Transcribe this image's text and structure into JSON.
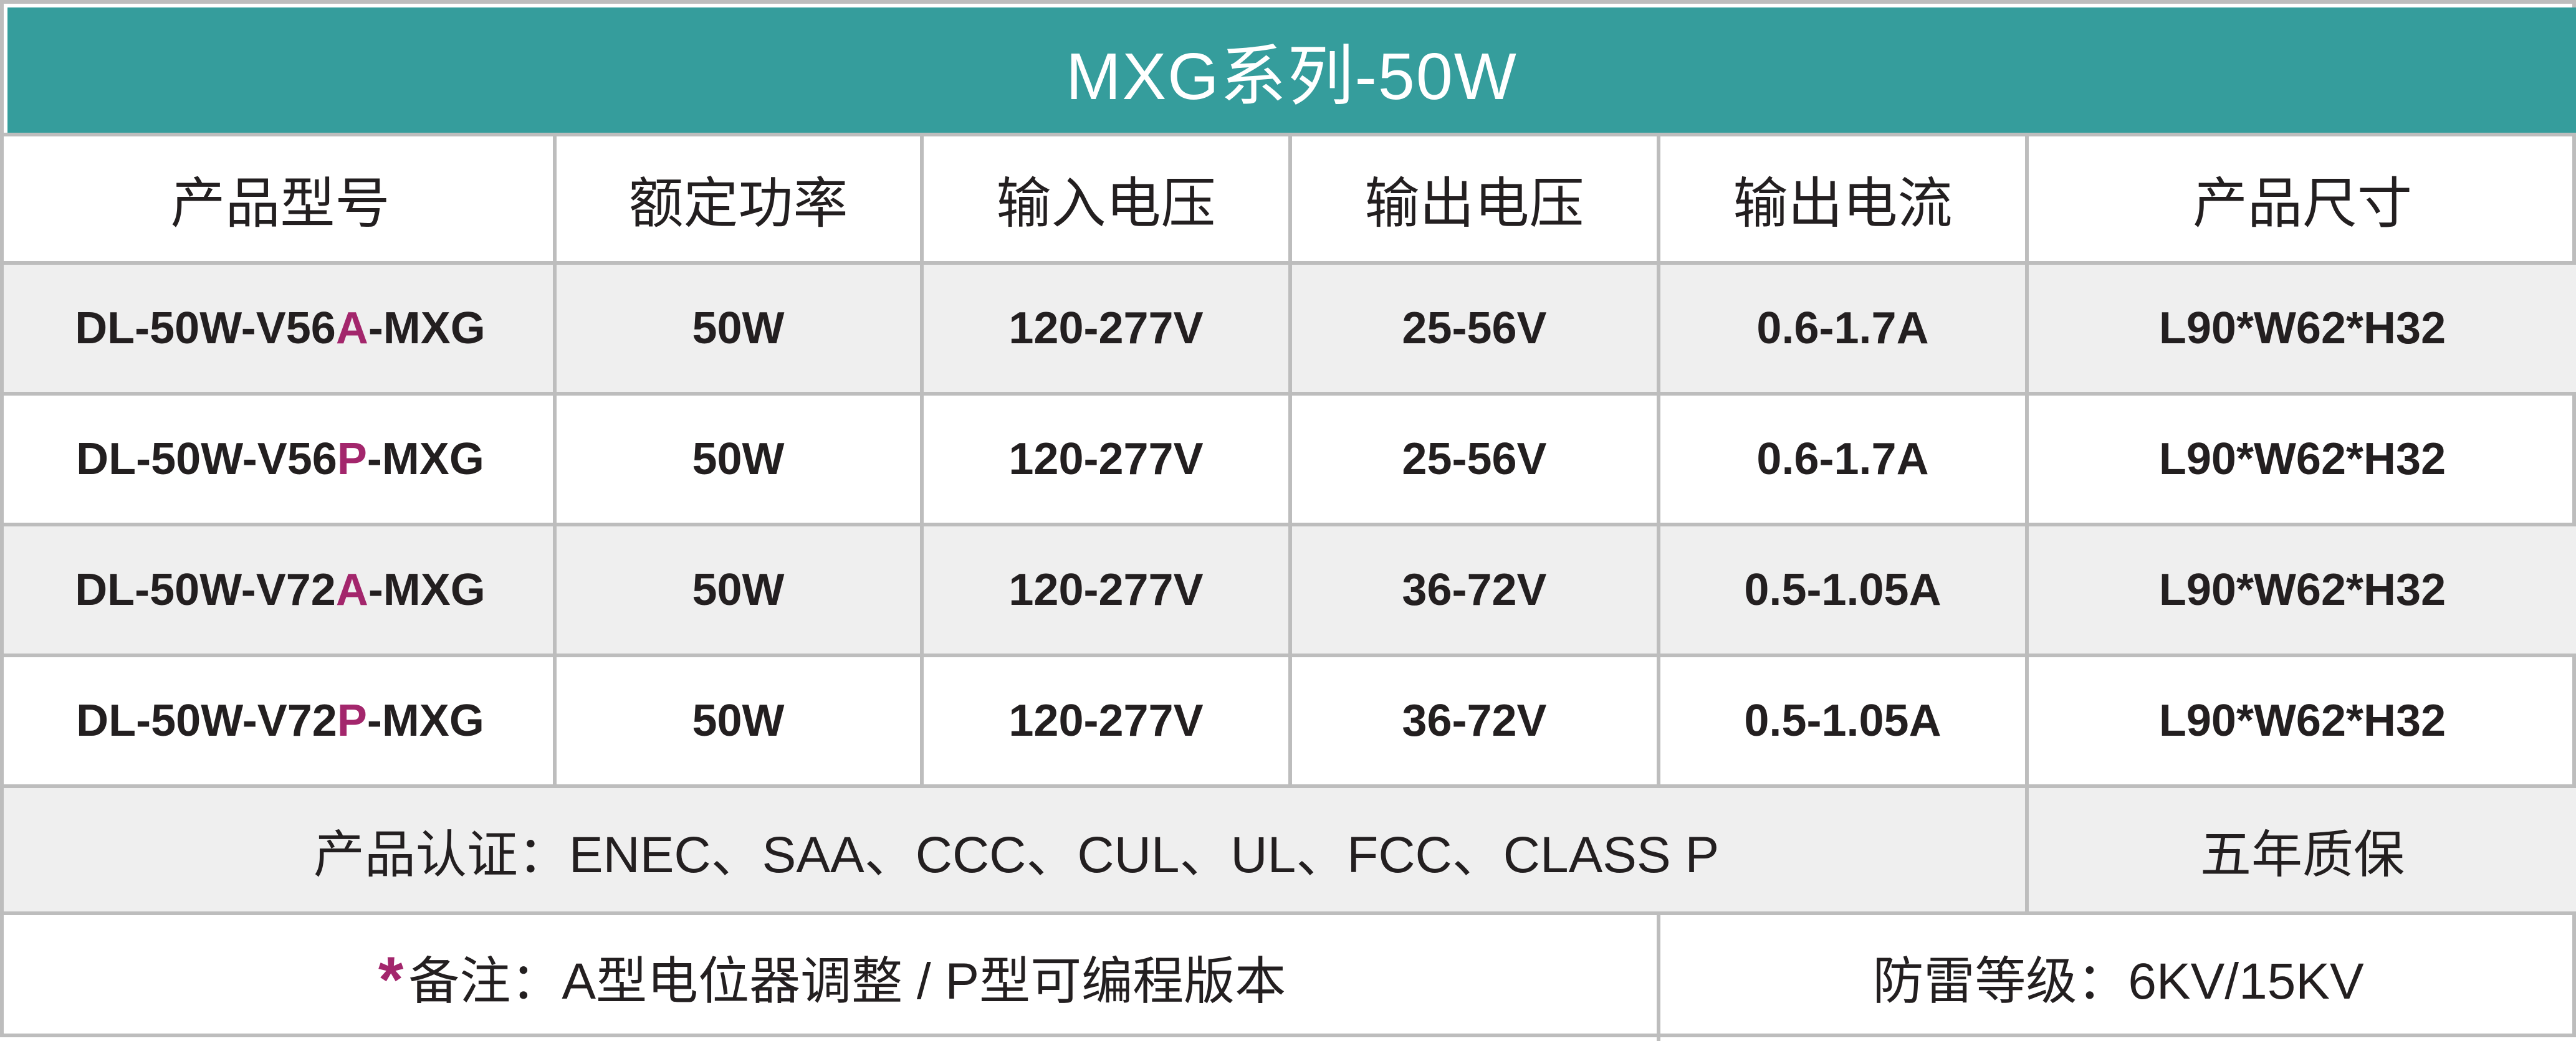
{
  "colors": {
    "header_bg": "#359d9c",
    "accent_variant": "#a3266c",
    "row_alt": "#efefef",
    "grid": "#bdbdbd"
  },
  "title": "MXG系列-50W",
  "columns": [
    "产品型号",
    "额定功率",
    "输入电压",
    "输出电压",
    "输出电流",
    "产品尺寸"
  ],
  "rows": [
    {
      "model_prefix": "DL-50W-V56",
      "model_variant": "A",
      "model_suffix": "-MXG",
      "power": "50W",
      "input_voltage": "120-277V",
      "output_voltage": "25-56V",
      "output_current": "0.6-1.7A",
      "size": "L90*W62*H32"
    },
    {
      "model_prefix": "DL-50W-V56",
      "model_variant": "P",
      "model_suffix": "-MXG",
      "power": "50W",
      "input_voltage": "120-277V",
      "output_voltage": "25-56V",
      "output_current": "0.6-1.7A",
      "size": "L90*W62*H32"
    },
    {
      "model_prefix": "DL-50W-V72",
      "model_variant": "A",
      "model_suffix": "-MXG",
      "power": "50W",
      "input_voltage": "120-277V",
      "output_voltage": "36-72V",
      "output_current": "0.5-1.05A",
      "size": "L90*W62*H32"
    },
    {
      "model_prefix": "DL-50W-V72",
      "model_variant": "P",
      "model_suffix": "-MXG",
      "power": "50W",
      "input_voltage": "120-277V",
      "output_voltage": "36-72V",
      "output_current": "0.5-1.05A",
      "size": "L90*W62*H32"
    }
  ],
  "certification": "产品认证：ENEC、SAA、CCC、CUL、UL、FCC、CLASS P",
  "warranty": "五年质保",
  "note_star": "*",
  "note": "备注：A型电位器调整 /  P型可编程版本",
  "surge_protection": "防雷等级：6KV/15KV"
}
